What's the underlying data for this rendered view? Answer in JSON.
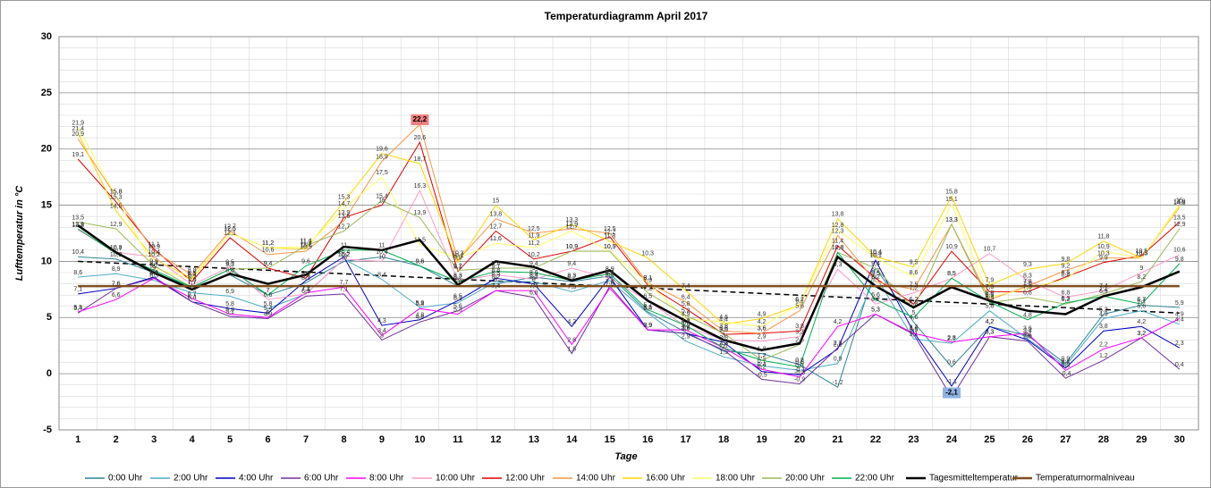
{
  "chart_data": {
    "type": "line",
    "title": "Temperaturdiagramm April 2017",
    "x_label": "Tage",
    "y_label": "Lufttemperatur in °C",
    "categories": [
      "1",
      "2",
      "3",
      "4",
      "5",
      "6",
      "7",
      "8",
      "9",
      "10",
      "11",
      "12",
      "13",
      "14",
      "15",
      "16",
      "17",
      "18",
      "19",
      "20",
      "21",
      "22",
      "23",
      "24",
      "25",
      "26",
      "27",
      "28",
      "29",
      "30"
    ],
    "ylim": [
      -5,
      30
    ],
    "yticks": [
      -5,
      0,
      5,
      10,
      15,
      20,
      25,
      30
    ],
    "grid": true,
    "minor_grid": true,
    "legend_position": "bottom",
    "trendline": {
      "color": "#000000",
      "values": [
        10.0,
        5.4
      ]
    },
    "series": [
      {
        "name": "0:00 Uhr",
        "color": "#31849b",
        "width": 1,
        "values": [
          10.4,
          10.2,
          9.0,
          7.7,
          8.8,
          7.0,
          8.1,
          10.0,
          10.4,
          9.6,
          7.8,
          8.0,
          8.6,
          8.2,
          8.7,
          5.5,
          3.7,
          2.0,
          1.8,
          0.8,
          -1.2,
          9.4,
          4.6,
          0.6,
          4.2,
          3.4,
          0.9,
          5.3,
          6.1,
          5.9
        ],
        "value_labels": [
          "10,4",
          "10,2",
          "9",
          "7,7",
          "8,8",
          "7",
          "8,1",
          "10",
          "10,4",
          "9,6",
          "7,8",
          "8",
          "8,6",
          "8,2",
          "8,7",
          "5,5",
          "3,7",
          "2",
          "1,8",
          "0,8",
          "-1,2",
          "9,4",
          "4,6",
          "0,6",
          "4,2",
          "3,4",
          "0,9",
          "5,3",
          "6,1",
          "5,9"
        ]
      },
      {
        "name": "2:00 Uhr",
        "color": "#4bacc6",
        "width": 1,
        "values": [
          8.6,
          8.9,
          8.3,
          7.2,
          6.9,
          5.8,
          7.1,
          10.2,
          8.4,
          5.9,
          6.3,
          8.2,
          8.2,
          7.3,
          8.3,
          5.4,
          2.9,
          1.5,
          0.7,
          0.3,
          0.9,
          8.7,
          3.1,
          2.7,
          5.6,
          3.1,
          0.7,
          4.9,
          5.6,
          4.4
        ],
        "value_labels": [
          "8,6",
          "8,9",
          "8,3",
          "7,2",
          "6,9",
          "5,8",
          "7,1",
          "10,2",
          "8,4",
          "5,9",
          "6,3",
          "8,2",
          "8,2",
          "7,3",
          "8,3",
          "5,4",
          "2,9",
          "1,5",
          "0,7",
          "0,3",
          "0,9",
          "8,7",
          "3,1",
          "2,7",
          "5,6",
          "3,1",
          "0,7",
          "4,9",
          "5,6",
          "4,4"
        ]
      },
      {
        "name": "4:00 Uhr",
        "color": "#0000c0",
        "width": 1,
        "values": [
          7.1,
          7.6,
          8.6,
          6.4,
          5.8,
          5.4,
          8.3,
          10.4,
          4.3,
          4.8,
          6.5,
          8.5,
          8.0,
          4.2,
          8.6,
          3.9,
          3.6,
          2.8,
          0.2,
          -0.1,
          2.2,
          10.1,
          3.7,
          -1.1,
          4.2,
          3.0,
          0.5,
          3.8,
          4.2,
          2.3
        ],
        "value_labels": [
          "7,1",
          "7,6",
          "8,6",
          "6,4",
          "5,8",
          "5,4",
          "8,3",
          "10,4",
          "4,3",
          "4,8",
          "6,5",
          "8,5",
          "8",
          "4,2",
          "8,6",
          "3,9",
          "3,6",
          "2,8",
          "0,2",
          "-0,1",
          "2,2",
          "10,1",
          "3,7",
          "-1,1",
          "4,2",
          "3",
          "0,5",
          "3,8",
          "4,2",
          "2,3"
        ]
      },
      {
        "name": "6:00 Uhr",
        "color": "#7030a0",
        "width": 1,
        "values": [
          5.4,
          7.6,
          8.5,
          6.4,
          5.1,
          4.9,
          6.9,
          7.1,
          3.0,
          4.6,
          5.6,
          7.4,
          6.8,
          1.8,
          7.8,
          3.9,
          3.6,
          2.1,
          -0.5,
          -0.9,
          2.3,
          5.3,
          3.5,
          -2.1,
          3.3,
          2.9,
          -0.4,
          1.2,
          3.2,
          0.4
        ],
        "value_labels": [
          "5,4",
          "7,6",
          "8,5",
          "6,4",
          "5,1",
          "4,9",
          "6,9",
          "7,1",
          "3",
          "4,6",
          "5,6",
          "7,4",
          "6,8",
          "1,8",
          "7,8",
          "3,9",
          "3,6",
          "2,1",
          "-0,5",
          "-0,9",
          "2,3",
          "5,3",
          "3,5",
          "-2,1",
          "3,3",
          "2,9",
          "-0,4",
          "1,2",
          "3,2",
          "0,4"
        ]
      },
      {
        "name": "8:00 Uhr",
        "color": "#ff00ff",
        "width": 1,
        "values": [
          5.5,
          6.6,
          8.5,
          6.7,
          5.3,
          5.0,
          7.2,
          7.7,
          3.4,
          5.8,
          5.3,
          7.4,
          7.4,
          2.6,
          7.6,
          3.9,
          3.9,
          2.3,
          0.4,
          -0.3,
          4.2,
          5.3,
          3.6,
          2.8,
          3.3,
          3.6,
          0.3,
          2.2,
          3.2,
          4.9
        ],
        "value_labels": [
          "5,5",
          "6,6",
          "8,5",
          "6,7",
          "5,3",
          "5",
          "7,2",
          "7,7",
          "3,4",
          "5,8",
          "5,3",
          "7,4",
          "7,4",
          "2,6",
          "7,6",
          "3,9",
          "3,9",
          "2,3",
          "0,4",
          "-0,3",
          "4,2",
          "5,3",
          "3,6",
          "2,8",
          "3,3",
          "3,6",
          "0,3",
          "2,2",
          "3,2",
          "4,9"
        ]
      },
      {
        "name": "10:00 Uhr",
        "color": "#ff99cc",
        "width": 1,
        "values": [
          12.8,
          10.8,
          10.4,
          7.9,
          9.5,
          6.6,
          7.1,
          10.2,
          10.0,
          16.3,
          8.3,
          8.8,
          8.4,
          9.4,
          8.5,
          6.5,
          4.2,
          3.0,
          2.9,
          3.3,
          9.3,
          6.2,
          7.2,
          8.5,
          10.7,
          8.3,
          6.8,
          7.4,
          9.0,
          10.6
        ],
        "value_labels": [
          "12,8",
          "10,8",
          "10,4",
          "7,9",
          "9,5",
          "6,6",
          "7,1",
          "10,2",
          "10",
          "16,3",
          "8,3",
          "8,8",
          "8,4",
          "9,4",
          "8,5",
          "6,5",
          "4,2",
          "3",
          "2,9",
          "3,3",
          "9,3",
          "6,2",
          "7,2",
          "8,5",
          "10,7",
          "8,3",
          "6,8",
          "7,4",
          "9",
          "10,6"
        ]
      },
      {
        "name": "12:00 Uhr",
        "color": "#e00000",
        "width": 1,
        "values": [
          19.1,
          15.3,
          11.1,
          8.2,
          12.1,
          9.4,
          8.5,
          13.9,
          15.0,
          20.6,
          9.1,
          12.7,
          10.2,
          10.9,
          12.2,
          7.9,
          5.8,
          3.5,
          3.6,
          3.8,
          11.4,
          8.5,
          6.2,
          10.9,
          7.3,
          7.3,
          8.6,
          9.9,
          10.5,
          13.5
        ],
        "value_labels": [
          "19,1",
          "15,3",
          "11,1",
          "8,2",
          "12,1",
          "9,4",
          "8,5",
          "13,9",
          "15",
          "20,6",
          "9,1",
          "12,7",
          "10,2",
          "10,9",
          "12,2",
          "7,9",
          "5,8",
          "3,5",
          "3,6",
          "3,8",
          "11,4",
          "8,5",
          "6,2",
          "10,9",
          "7,3",
          "7,3",
          "8,6",
          "9,9",
          "10,5",
          "13,5"
        ]
      },
      {
        "name": "14:00 Uhr",
        "color": "#f79646",
        "width": 1,
        "values": [
          20.9,
          15.8,
          10.9,
          8.8,
          12.7,
          10.6,
          10.9,
          13.6,
          18.9,
          22.2,
          10.1,
          13.8,
          12.5,
          12.9,
          12.5,
          8.1,
          6.4,
          3.8,
          3.6,
          5.6,
          12.3,
          8.2,
          7.5,
          13.3,
          6.6,
          7.8,
          9.2,
          10.3,
          10.3,
          14.8
        ],
        "value_labels": [
          "20,9",
          "15,8",
          "10,9",
          "8,8",
          "12,7",
          "10,6",
          "10,9",
          "13,6",
          "18,9",
          "22,2",
          "10,1",
          "13,8",
          "12,5",
          "12,9",
          "12,5",
          "8,1",
          "6,4",
          "3,8",
          "3,6",
          "5,6",
          "12,3",
          "8,2",
          "7,5",
          "13,3",
          "6,6",
          "7,8",
          "9,2",
          "10,3",
          "10,3",
          "14,8"
        ]
      },
      {
        "name": "16:00 Uhr",
        "color": "#ffd700",
        "width": 1,
        "values": [
          21.4,
          14.5,
          10.2,
          8.5,
          12.5,
          11.2,
          11.1,
          15.3,
          19.6,
          18.7,
          9.9,
          15.0,
          11.9,
          13.3,
          11.8,
          10.3,
          7.4,
          4.4,
          4.9,
          6.1,
          13.8,
          10.4,
          9.5,
          15.8,
          7.9,
          9.3,
          9.8,
          11.8,
          10.3,
          15.0
        ],
        "value_labels": [
          "21,4",
          "14,5",
          "10,2",
          "8,5",
          "12,5",
          "11,2",
          "11,1",
          "15,3",
          "19,6",
          "18,7",
          "9,9",
          "15",
          "11,9",
          "13,3",
          "11,8",
          "10,3",
          "7,4",
          "4,4",
          "4,9",
          "6,1",
          "13,8",
          "10,4",
          "9,5",
          "15,8",
          "7,9",
          "9,3",
          "9,8",
          "11,8",
          "10,3",
          "15"
        ]
      },
      {
        "name": "18:00 Uhr",
        "color": "#ffff66",
        "width": 1,
        "values": [
          21.9,
          15.8,
          9.4,
          8.4,
          12.5,
          11.2,
          11.3,
          14.7,
          17.5,
          11.5,
          10.3,
          11.6,
          11.2,
          12.7,
          10.9,
          8.1,
          4.9,
          4.6,
          4.2,
          6.2,
          12.8,
          10.3,
          8.6,
          15.1,
          6.8,
          7.6,
          8.4,
          10.9,
          10.3,
          14.9
        ],
        "value_labels": [
          "21,9",
          "15,8",
          "9,4",
          "8,4",
          "12,5",
          "11,2",
          "11,3",
          "14,7",
          "17,5",
          "11,5",
          "10,3",
          "11,6",
          "11,2",
          "12,7",
          "10,9",
          "8,1",
          "4,9",
          "4,6",
          "4,2",
          "6,2",
          "12,8",
          "10,3",
          "8,6",
          "15,1",
          "6,8",
          "7,6",
          "8,4",
          "10,9",
          "10,3",
          "14,9"
        ]
      },
      {
        "name": "20:00 Uhr",
        "color": "#9bbb59",
        "width": 1,
        "values": [
          13.5,
          12.9,
          9.6,
          7.7,
          9.3,
          9.4,
          11.4,
          12.7,
          15.4,
          13.9,
          9.2,
          9.4,
          9.4,
          10.9,
          10.9,
          7.2,
          5.2,
          3.6,
          1.2,
          2.6,
          10.8,
          9.4,
          5.8,
          13.3,
          6.3,
          6.8,
          6.2,
          7.1,
          8.2,
          12.9
        ],
        "value_labels": [
          "13,5",
          "12,9",
          "9,6",
          "7,7",
          "9,3",
          "9,4",
          "11,4",
          "12,7",
          "15,4",
          "13,9",
          "9,2",
          "9,4",
          "9,4",
          "10,9",
          "10,9",
          "7,2",
          "5,2",
          "3,6",
          "1,2",
          "2,6",
          "10,8",
          "9,4",
          "5,8",
          "13,3",
          "6,3",
          "6,8",
          "6,2",
          "7,1",
          "8,2",
          "12,9"
        ]
      },
      {
        "name": "22:00 Uhr",
        "color": "#00b050",
        "width": 1,
        "values": [
          12.9,
          10.7,
          9.2,
          7.7,
          9.3,
          7.0,
          9.6,
          11.0,
          11.0,
          9.6,
          8.2,
          9.1,
          9.0,
          8.3,
          8.9,
          5.7,
          4.3,
          2.3,
          1.2,
          0.6,
          10.8,
          6.6,
          5.0,
          8.5,
          6.4,
          4.8,
          6.3,
          6.9,
          6.2,
          9.8
        ],
        "value_labels": [
          "12,9",
          "10,7",
          "9,2",
          "7,7",
          "9,3",
          "7",
          "9,6",
          "11",
          "11",
          "9,6",
          "8,2",
          "9,1",
          "9",
          "8,3",
          "8,9",
          "5,7",
          "4,3",
          "2,3",
          "1,2",
          "0,6",
          "10,8",
          "6,6",
          "5",
          "8,5",
          "6,4",
          "4,8",
          "6,3",
          "6,9",
          "6,2",
          "9,8"
        ]
      },
      {
        "name": "Tagesmitteltemperatur",
        "color": "#000000",
        "width": 2.5,
        "values": [
          13.2,
          10.8,
          9.0,
          7.5,
          8.9,
          8.0,
          8.8,
          11.3,
          11.0,
          11.9,
          7.9,
          10.0,
          9.5,
          8.3,
          9.2,
          6.5,
          4.7,
          3.0,
          2.1,
          2.7,
          10.4,
          7.8,
          5.9,
          7.7,
          6.5,
          5.6,
          5.3,
          6.9,
          7.7,
          9.1
        ]
      },
      {
        "name": "Temperaturnormalniveau",
        "color": "#7f4f1f",
        "width": 2.5,
        "values": [
          7.8,
          7.8,
          7.8,
          7.8,
          7.8,
          7.8,
          7.8,
          7.8,
          7.8,
          7.8,
          7.8,
          7.8,
          7.8,
          7.8,
          7.8,
          7.8,
          7.8,
          7.8,
          7.8,
          7.8,
          7.8,
          7.8,
          7.8,
          7.8,
          7.8,
          7.8,
          7.8,
          7.8,
          7.8,
          7.8
        ]
      }
    ]
  }
}
